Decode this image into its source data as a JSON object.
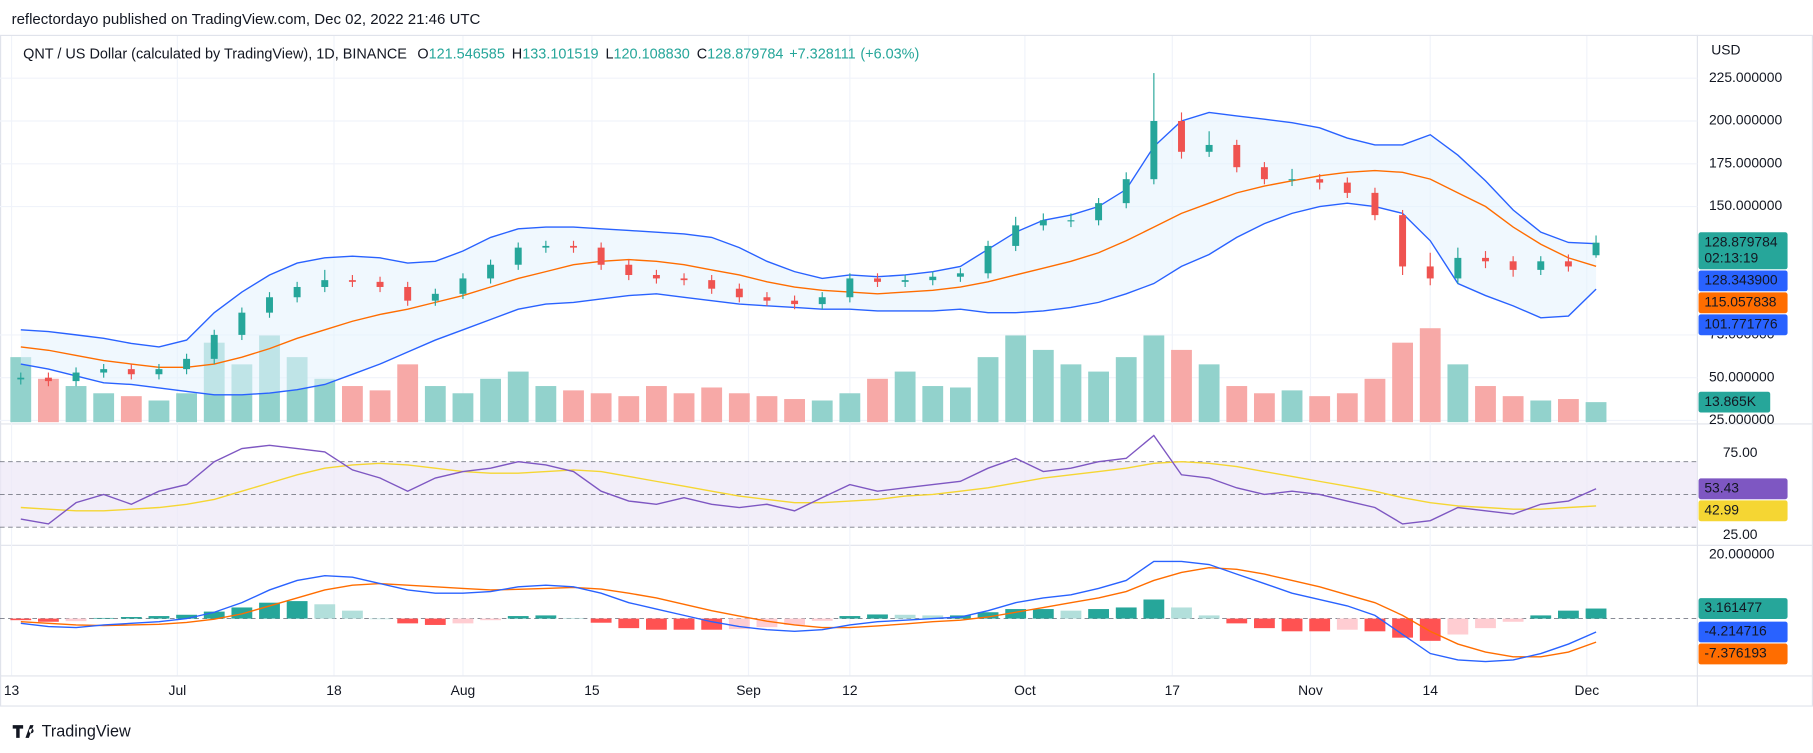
{
  "chart_data": {
    "type": "candlestick",
    "header": "reflectordayo published on TradingView.com, Dec 02, 2022 21:46 UTC",
    "title": "QNT / US Dollar (calculated by TradingView), 1D, BINANCE",
    "ohlc_legend": [
      {
        "key": "O",
        "value": 121.546585,
        "label": "121.546585"
      },
      {
        "key": "H",
        "value": 133.101519,
        "label": "133.101519"
      },
      {
        "key": "L",
        "value": 120.10883,
        "label": "120.108830"
      },
      {
        "key": "C",
        "value": 128.879784,
        "label": "128.879784"
      }
    ],
    "change": {
      "value": 7.328111,
      "label": "+7.328111"
    },
    "change_pct": {
      "value": 6.03,
      "label": "(+6.03%)"
    },
    "currency": "USD",
    "countdown": "02:13:19",
    "footer": "TradingView",
    "x": [
      1,
      4,
      7,
      10,
      13,
      16,
      19,
      22,
      25,
      28,
      31,
      34,
      37,
      40,
      43,
      46,
      49,
      52,
      55,
      58,
      61,
      64,
      67,
      70,
      73,
      76,
      79,
      82,
      85,
      88,
      91,
      94,
      97,
      100,
      103,
      106,
      109,
      112,
      115,
      118,
      121,
      124,
      127,
      130,
      133,
      136,
      139,
      142,
      145,
      148,
      151,
      154,
      157,
      160,
      163,
      166,
      169,
      172
    ],
    "xlim": [
      0,
      183
    ],
    "xticks": [
      {
        "value": 0,
        "label": "13"
      },
      {
        "value": 18,
        "label": "Jul"
      },
      {
        "value": 35,
        "label": "18"
      },
      {
        "value": 49,
        "label": "Aug"
      },
      {
        "value": 63,
        "label": "15"
      },
      {
        "value": 80,
        "label": "Sep"
      },
      {
        "value": 91,
        "label": "12"
      },
      {
        "value": 110,
        "label": "Oct"
      },
      {
        "value": 126,
        "label": "17"
      },
      {
        "value": 141,
        "label": "Nov"
      },
      {
        "value": 154,
        "label": "14"
      },
      {
        "value": 171,
        "label": "Dec"
      }
    ],
    "open": [
      49,
      50,
      48,
      53,
      55,
      52,
      55,
      61,
      75,
      88,
      97,
      103,
      107,
      106,
      103,
      95,
      99,
      108,
      116,
      126,
      127,
      126,
      116,
      110,
      108,
      107,
      102,
      97,
      95,
      93,
      97,
      108,
      106,
      107,
      109,
      111,
      127,
      139,
      142,
      142,
      152,
      166,
      200,
      182,
      186,
      173,
      166,
      166,
      164,
      158,
      145,
      115,
      108,
      120,
      118,
      113,
      118,
      121.546585
    ],
    "high": [
      53,
      53,
      56,
      58,
      58,
      58,
      64,
      78,
      91,
      100,
      106,
      113,
      110,
      109,
      106,
      102,
      111,
      119,
      129,
      130,
      130,
      129,
      119,
      113,
      111,
      110,
      105,
      100,
      98,
      100,
      111,
      111,
      110,
      112,
      114,
      130,
      144,
      146,
      146,
      155,
      170,
      228,
      205,
      194,
      189,
      176,
      172,
      169,
      167,
      161,
      148,
      123,
      126,
      124,
      121,
      121,
      122,
      133.101519
    ],
    "low": [
      46,
      45,
      45,
      50,
      49,
      49,
      52,
      58,
      72,
      85,
      94,
      100,
      103,
      100,
      92,
      92,
      96,
      105,
      113,
      123,
      123,
      113,
      107,
      105,
      104,
      99,
      94,
      92,
      90,
      90,
      94,
      103,
      103,
      104,
      106,
      108,
      124,
      136,
      138,
      139,
      149,
      163,
      178,
      179,
      170,
      163,
      162,
      160,
      155,
      142,
      110,
      104,
      105,
      114,
      109,
      110,
      112,
      120.10883
    ],
    "close": [
      50,
      48,
      53,
      55,
      52,
      55,
      61,
      75,
      88,
      97,
      103,
      107,
      106,
      103,
      95,
      99,
      108,
      116,
      126,
      127,
      126,
      116,
      110,
      108,
      107,
      102,
      97,
      95,
      93,
      97,
      108,
      106,
      107,
      109,
      111,
      127,
      139,
      142,
      142,
      152,
      166,
      200,
      182,
      186,
      173,
      166,
      166,
      164,
      158,
      145,
      115,
      108,
      120,
      118,
      113,
      118,
      115,
      128.879784
    ],
    "volume": [
      45000,
      30000,
      25000,
      20000,
      18000,
      15000,
      20000,
      55000,
      40000,
      60000,
      45000,
      30000,
      25000,
      22000,
      40000,
      25000,
      20000,
      30000,
      35000,
      25000,
      22000,
      20000,
      18000,
      25000,
      20000,
      24000,
      20000,
      18000,
      16000,
      15000,
      20000,
      30000,
      35000,
      25000,
      24000,
      45000,
      60000,
      50000,
      40000,
      35000,
      45000,
      60000,
      50000,
      40000,
      25000,
      20000,
      22000,
      18000,
      20000,
      30000,
      55000,
      65000,
      40000,
      25000,
      18000,
      15000,
      16000,
      13865
    ],
    "up_color": "#26a69a",
    "down_color": "#ef5350",
    "volume_up_color": "#92d2cc",
    "volume_down_color": "#f7a9a7",
    "ylim": [
      24,
      249
    ],
    "yticks": [
      {
        "value": 225,
        "label": "225.000000"
      },
      {
        "value": 200,
        "label": "200.000000"
      },
      {
        "value": 175,
        "label": "175.000000"
      },
      {
        "value": 150,
        "label": "150.000000"
      },
      {
        "value": 75,
        "label": "75.000000"
      },
      {
        "value": 50,
        "label": "50.000000"
      },
      {
        "value": 25,
        "label": "25.000000"
      }
    ],
    "grid": true,
    "bollinger": {
      "upper": [
        78,
        77,
        75,
        73,
        70,
        68,
        72,
        88,
        100,
        110,
        117,
        120,
        121,
        120,
        117,
        118,
        124,
        132,
        137,
        138,
        138,
        137,
        136,
        135,
        134,
        132,
        126,
        118,
        112,
        108,
        110,
        109,
        110,
        112,
        115,
        125,
        135,
        142,
        145,
        150,
        160,
        185,
        200,
        205,
        203,
        201,
        199,
        196,
        190,
        186,
        186,
        192,
        180,
        165,
        148,
        135,
        129,
        128.3439
      ],
      "basis": [
        68,
        66,
        63,
        60,
        58,
        56,
        56,
        58,
        62,
        67,
        73,
        78,
        83,
        87,
        90,
        94,
        98,
        103,
        108,
        112,
        116,
        118,
        119,
        118,
        116,
        113,
        110,
        106,
        103,
        101,
        100,
        99,
        100,
        101,
        103,
        106,
        110,
        114,
        118,
        123,
        130,
        138,
        146,
        152,
        158,
        162,
        165,
        168,
        170,
        171,
        170,
        166,
        158,
        150,
        138,
        128,
        120,
        115.057838
      ],
      "lower": [
        58,
        55,
        51,
        47,
        46,
        44,
        42,
        40,
        40,
        41,
        43,
        46,
        52,
        58,
        65,
        72,
        78,
        84,
        90,
        93,
        94,
        96,
        98,
        99,
        97,
        95,
        93,
        92,
        91,
        90,
        90,
        89,
        89,
        89,
        90,
        88,
        88,
        89,
        91,
        94,
        99,
        105,
        115,
        122,
        132,
        140,
        146,
        150,
        152,
        150,
        146,
        130,
        105,
        98,
        92,
        85,
        86,
        101.771776
      ],
      "band_color": "#2962ff",
      "basis_color": "#ff6d00",
      "fill": "#e3f2fd"
    },
    "last_labels": [
      {
        "value": 128.879784,
        "label": "128.879784",
        "color": "#26a69a"
      },
      {
        "value": 128.3439,
        "label": "128.343900",
        "color": "#2962ff"
      },
      {
        "value": 115.057838,
        "label": "115.057838",
        "color": "#ff6d00"
      },
      {
        "value": 101.771776,
        "label": "101.771776",
        "color": "#2962ff"
      }
    ],
    "volume_label": {
      "value": 13865,
      "label": "13.865K",
      "color": "#26a69a"
    },
    "rsi": {
      "values": [
        35,
        32,
        45,
        50,
        44,
        52,
        56,
        70,
        78,
        80,
        78,
        76,
        65,
        60,
        52,
        60,
        64,
        66,
        70,
        68,
        64,
        52,
        46,
        44,
        48,
        44,
        42,
        44,
        40,
        48,
        56,
        52,
        54,
        56,
        58,
        66,
        72,
        64,
        66,
        70,
        72,
        86,
        62,
        60,
        54,
        50,
        52,
        50,
        46,
        42,
        32,
        34,
        42,
        40,
        38,
        44,
        46,
        53.43
      ],
      "ma": [
        42,
        41,
        40,
        40,
        41,
        42,
        44,
        47,
        52,
        57,
        62,
        66,
        68,
        69,
        68,
        66,
        64,
        63,
        63,
        64,
        65,
        64,
        61,
        58,
        55,
        52,
        49,
        47,
        45,
        45,
        46,
        47,
        49,
        50,
        52,
        54,
        57,
        60,
        62,
        64,
        66,
        69,
        70,
        69,
        67,
        64,
        61,
        58,
        55,
        52,
        48,
        45,
        43,
        42,
        41,
        41,
        42,
        42.99
      ],
      "ylim": [
        20,
        92
      ],
      "yticks": [
        {
          "value": 75,
          "label": "75.00"
        },
        {
          "value": 25,
          "label": "25.00"
        }
      ],
      "levels": [
        70,
        50,
        30
      ],
      "color": "#7e57c2",
      "ma_color": "#f5d633",
      "fill": "#ede7f6",
      "last_labels": [
        {
          "value": 53.43,
          "label": "53.43",
          "color": "#7e57c2"
        },
        {
          "value": 42.99,
          "label": "42.99",
          "color": "#f5d633",
          "text_color": "#131722"
        }
      ]
    },
    "macd": {
      "macd": [
        -1.5,
        -2.5,
        -2.8,
        -2,
        -1.5,
        -1,
        0,
        2,
        5,
        9,
        12,
        13.5,
        13,
        11,
        9,
        8,
        8,
        8.5,
        10,
        10.5,
        10,
        8,
        5,
        3,
        1,
        -1,
        -2.5,
        -3.5,
        -4,
        -3.5,
        -2,
        -1,
        -0.5,
        0,
        0.5,
        2.5,
        5,
        6.5,
        7.5,
        9.5,
        12,
        18,
        18,
        17,
        14,
        11,
        8,
        6,
        4,
        1,
        -5,
        -11,
        -13,
        -13.5,
        -13,
        -11,
        -8,
        -4.214716
      ],
      "signal": [
        -1,
        -1.5,
        -2,
        -2.2,
        -2,
        -1.8,
        -1.2,
        -0.2,
        1.5,
        4,
        6.5,
        9,
        10.5,
        11,
        10.5,
        10,
        9.5,
        9,
        9.2,
        9.5,
        9.8,
        9.3,
        8,
        6.5,
        4.5,
        2.5,
        0.8,
        -0.8,
        -2,
        -2.8,
        -2.8,
        -2.3,
        -1.7,
        -1,
        -0.5,
        0.5,
        2,
        3.5,
        5,
        6.5,
        8.5,
        12,
        14.5,
        16,
        15.5,
        14,
        12,
        10,
        7.5,
        5,
        1,
        -4,
        -8,
        -10.5,
        -12,
        -12,
        -10.5,
        -7.376193
      ],
      "hist": [
        -0.5,
        -1,
        -0.8,
        0.2,
        0.5,
        0.8,
        1.2,
        2.2,
        3.5,
        5,
        5.5,
        4.5,
        2.5,
        0,
        -1.5,
        -2,
        -1.5,
        -0.5,
        0.8,
        1,
        0.2,
        -1.3,
        -3,
        -3.5,
        -3.5,
        -3.5,
        -3.3,
        -2.7,
        -2,
        -0.7,
        0.8,
        1.3,
        1.2,
        1,
        1,
        2,
        3,
        3,
        2.5,
        3,
        3.5,
        6,
        3.5,
        1,
        -1.5,
        -3,
        -4,
        -4,
        -3.5,
        -4,
        -6,
        -7,
        -5,
        -3,
        -1,
        1,
        2.5,
        3.161477
      ],
      "ylim": [
        -17.5,
        22.5
      ],
      "yticks": [
        {
          "value": 20,
          "label": "20.000000"
        }
      ],
      "zero": 0,
      "macd_color": "#2962ff",
      "signal_color": "#ff6d00",
      "hist_colors": {
        "up_grow": "#26a69a",
        "up_fall": "#b2dfdb",
        "down_grow": "#ff5252",
        "down_fall": "#ffcdd2"
      },
      "last_labels": [
        {
          "value": 3.161477,
          "label": "3.161477",
          "color": "#26a69a"
        },
        {
          "value": -4.214716,
          "label": "-4.214716",
          "color": "#2962ff"
        },
        {
          "value": -7.376193,
          "label": "-7.376193",
          "color": "#ff6d00"
        }
      ]
    }
  }
}
